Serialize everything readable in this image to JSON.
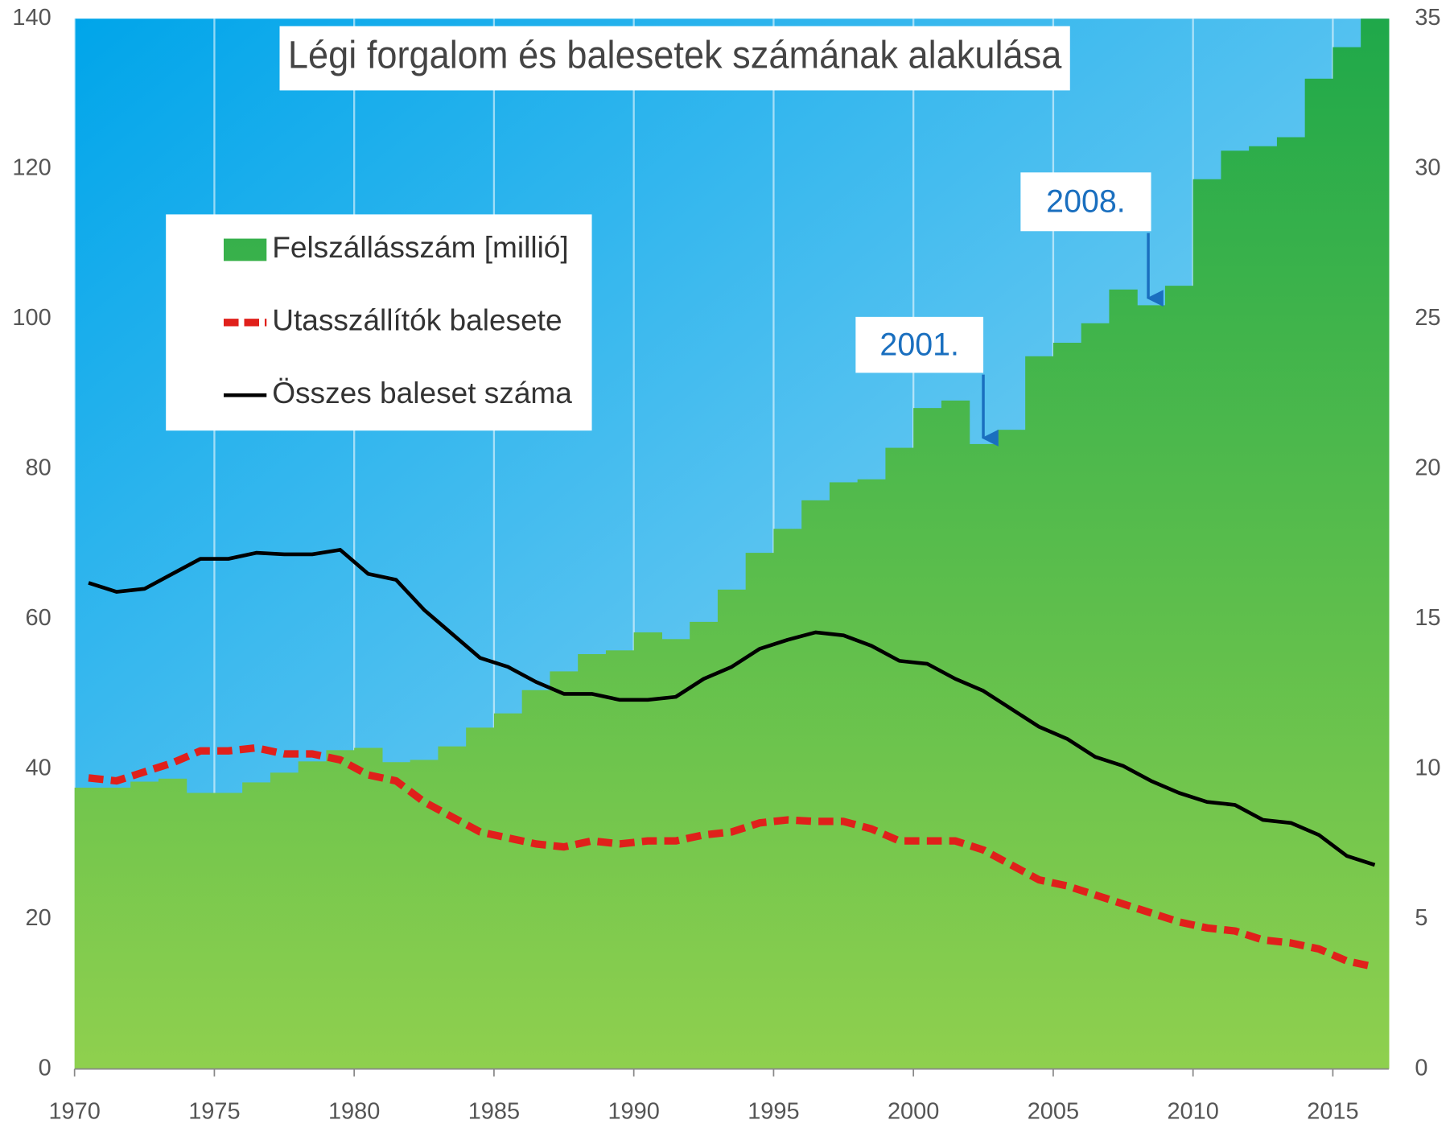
{
  "chart_data": {
    "type": "bar-line",
    "title": "Légi forgalom és balesetek számának alakulása",
    "x": [
      1970,
      1971,
      1972,
      1973,
      1974,
      1975,
      1976,
      1977,
      1978,
      1979,
      1980,
      1981,
      1982,
      1983,
      1984,
      1985,
      1986,
      1987,
      1988,
      1989,
      1990,
      1991,
      1992,
      1993,
      1994,
      1995,
      1996,
      1997,
      1998,
      1999,
      2000,
      2001,
      2002,
      2003,
      2004,
      2005,
      2006,
      2007,
      2008,
      2009,
      2010,
      2011,
      2012,
      2013,
      2014,
      2015,
      2016
    ],
    "series": [
      {
        "name": "Felszállásszám [millió]",
        "color": "#3cb44a",
        "kind": "bar",
        "axis": "y",
        "values": [
          37.5,
          37.5,
          38.3,
          38.7,
          36.8,
          36.8,
          38.2,
          39.5,
          41,
          42.5,
          42.8,
          40.9,
          41.2,
          43,
          45.5,
          47.4,
          50.5,
          53,
          55.3,
          55.8,
          58.2,
          57.3,
          59.6,
          63.9,
          68.8,
          72,
          75.8,
          78.2,
          78.6,
          82.8,
          88.1,
          89.1,
          83.3,
          85.2,
          95,
          96.8,
          99.4,
          103.9,
          101.8,
          104.4,
          118.6,
          122.4,
          123,
          124.2,
          132,
          136.2,
          140
        ]
      },
      {
        "name": "Utasszállítók balesete",
        "color": "#e0201b",
        "kind": "dashed-line",
        "axis": "y2",
        "values": [
          9.7,
          9.6,
          9.9,
          10.2,
          10.6,
          10.6,
          10.7,
          10.5,
          10.5,
          10.3,
          9.8,
          9.6,
          8.9,
          8.4,
          7.9,
          7.7,
          7.5,
          7.4,
          7.6,
          7.5,
          7.6,
          7.6,
          7.8,
          7.9,
          8.2,
          8.3,
          8.25,
          8.25,
          8.0,
          7.6,
          7.6,
          7.6,
          7.3,
          6.8,
          6.3,
          6.1,
          5.8,
          5.5,
          5.2,
          4.9,
          4.7,
          4.6,
          4.3,
          4.2,
          4.0,
          3.6,
          3.4
        ]
      },
      {
        "name": "Összes baleset száma",
        "color": "#000000",
        "kind": "line",
        "axis": "y2",
        "values": [
          16.2,
          15.9,
          16.0,
          16.5,
          17.0,
          17.0,
          17.2,
          17.15,
          17.15,
          17.3,
          16.5,
          16.3,
          15.3,
          14.5,
          13.7,
          13.4,
          12.9,
          12.5,
          12.5,
          12.3,
          12.3,
          12.4,
          13.0,
          13.4,
          14.0,
          14.3,
          14.55,
          14.45,
          14.1,
          13.6,
          13.5,
          13.0,
          12.6,
          12.0,
          11.4,
          11.0,
          10.4,
          10.1,
          9.6,
          9.2,
          8.9,
          8.8,
          8.3,
          8.2,
          7.8,
          7.1,
          6.8
        ]
      }
    ],
    "xlim": [
      1970,
      2017
    ],
    "xticks": [
      1970,
      1975,
      1980,
      1985,
      1990,
      1995,
      2000,
      2005,
      2010,
      2015
    ],
    "ylim": [
      0,
      140
    ],
    "yticks": [
      0,
      20,
      40,
      60,
      80,
      100,
      120,
      140
    ],
    "y2lim": [
      0,
      35
    ],
    "y2ticks": [
      0,
      5,
      10,
      15,
      20,
      25,
      30,
      35
    ],
    "annotations": [
      {
        "text": "2001."
      },
      {
        "text": "2008."
      }
    ],
    "legend": "top-left",
    "grid": true
  }
}
